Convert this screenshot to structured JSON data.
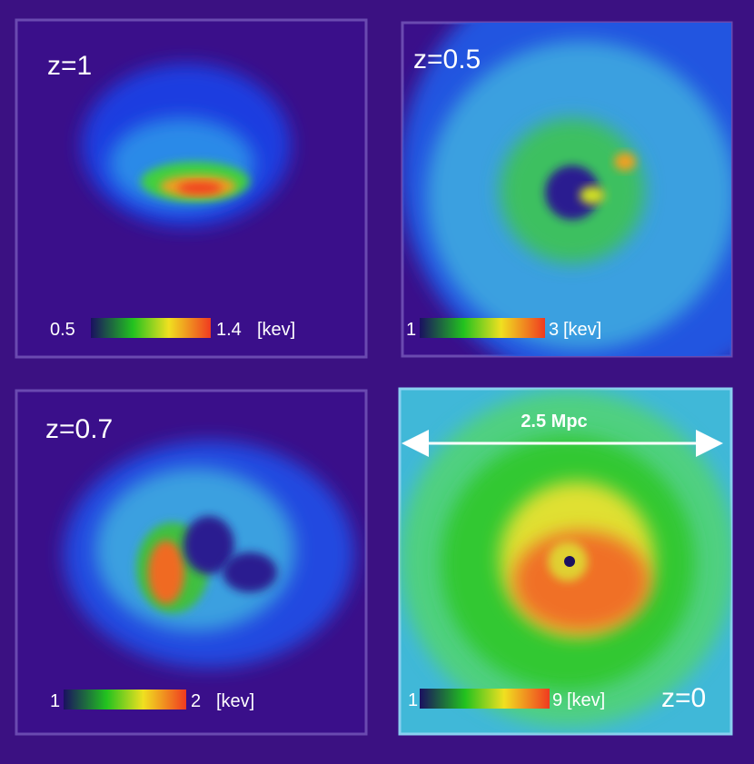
{
  "panels": [
    {
      "label": "z=1",
      "colorbar": {
        "min": "0.5",
        "max": "1.4",
        "unit": "[kev]"
      }
    },
    {
      "label": "z=0.5",
      "colorbar": {
        "min": "1",
        "max": "3",
        "unit": "[kev]"
      }
    },
    {
      "label": "z=0.7",
      "colorbar": {
        "min": "1",
        "max": "2",
        "unit": "[kev]"
      }
    },
    {
      "label": "z=0",
      "colorbar": {
        "min": "1",
        "max": "9",
        "unit": "[kev]"
      },
      "scale": "2.5 Mpc"
    }
  ]
}
